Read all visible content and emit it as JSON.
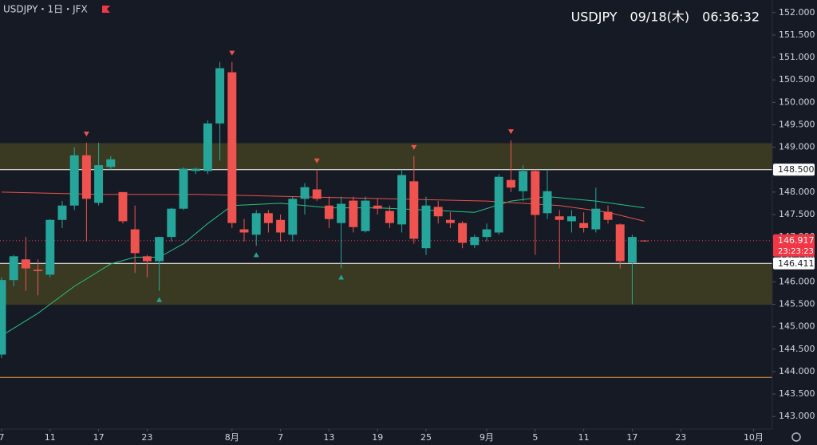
{
  "chart_data": {
    "type": "candlestick",
    "title": "USDJPY・1日・JFX",
    "subtitle": "USDJPY　09/18(木)　06:36:32",
    "x": [
      0,
      1,
      2,
      3,
      4,
      5,
      6,
      7,
      8,
      9,
      10,
      11,
      12,
      13,
      14,
      15,
      16,
      17,
      18,
      19,
      20,
      21,
      22,
      23,
      24,
      25,
      26,
      27,
      28,
      29,
      30,
      31,
      32,
      33,
      34,
      35,
      36,
      37,
      38,
      39,
      40,
      41,
      42,
      43,
      44,
      45,
      46,
      47,
      48,
      49,
      50,
      51,
      52,
      53
    ],
    "open": [
      144.38,
      146.04,
      146.5,
      146.27,
      146.16,
      147.38,
      147.7,
      148.82,
      147.76,
      148.56,
      148.0,
      147.17,
      146.57,
      146.46,
      147.0,
      147.63,
      148.47,
      148.47,
      149.53,
      150.67,
      147.17,
      147.05,
      147.53,
      147.38,
      147.05,
      147.85,
      148.06,
      147.7,
      147.31,
      147.81,
      147.13,
      147.7,
      147.58,
      147.28,
      148.24,
      146.75,
      147.67,
      147.38,
      147.31,
      146.82,
      147.0,
      147.1,
      148.27,
      148.02,
      148.47,
      147.53,
      147.46,
      147.35,
      147.31,
      147.17,
      147.56,
      147.28,
      146.43,
      146.92
    ],
    "high": [
      146.1,
      146.6,
      147.0,
      146.5,
      147.4,
      147.8,
      149.0,
      149.1,
      149.1,
      148.8,
      148.0,
      147.7,
      146.6,
      147.0,
      147.65,
      148.55,
      148.55,
      149.6,
      150.9,
      150.9,
      147.4,
      147.6,
      147.6,
      147.5,
      147.9,
      148.2,
      148.5,
      147.9,
      147.9,
      147.9,
      147.9,
      147.85,
      147.7,
      148.5,
      148.8,
      147.9,
      147.8,
      147.55,
      147.35,
      147.05,
      147.3,
      148.4,
      149.15,
      148.6,
      148.5,
      148.5,
      147.6,
      147.6,
      147.55,
      148.1,
      147.7,
      147.3,
      147.05,
      146.93
    ],
    "low": [
      144.3,
      145.9,
      145.8,
      145.7,
      146.1,
      147.2,
      147.6,
      146.9,
      147.7,
      148.5,
      147.3,
      146.2,
      146.1,
      145.8,
      146.9,
      147.6,
      148.4,
      148.4,
      148.7,
      147.2,
      146.9,
      146.8,
      147.1,
      146.9,
      146.9,
      147.5,
      147.8,
      147.2,
      146.3,
      147.1,
      147.1,
      147.5,
      147.2,
      147.1,
      146.85,
      146.6,
      147.3,
      147.2,
      146.75,
      146.75,
      146.9,
      147.05,
      148.0,
      147.8,
      146.6,
      147.4,
      146.3,
      147.1,
      147.1,
      147.1,
      147.3,
      146.3,
      145.5,
      146.9
    ],
    "close": [
      146.04,
      146.57,
      146.3,
      146.24,
      147.38,
      147.7,
      148.82,
      147.85,
      148.6,
      148.73,
      147.35,
      146.64,
      146.46,
      147.0,
      147.63,
      148.52,
      148.52,
      149.53,
      150.76,
      147.31,
      147.1,
      147.53,
      147.31,
      147.1,
      147.85,
      148.11,
      147.85,
      147.4,
      147.74,
      147.22,
      147.81,
      147.63,
      147.31,
      148.38,
      146.96,
      147.7,
      147.46,
      147.31,
      146.87,
      147.0,
      147.17,
      148.34,
      148.1,
      148.47,
      147.49,
      148.02,
      147.38,
      147.46,
      147.2,
      147.63,
      147.38,
      146.46,
      147.0,
      146.917
    ],
    "up_color": "#26a69a",
    "down_color": "#ef5350",
    "ma": [
      {
        "color": "#26c281",
        "x": [
          0,
          3,
          6,
          9,
          11,
          13,
          15,
          17,
          19,
          23,
          27,
          31,
          35,
          39,
          42,
          45,
          49,
          53
        ],
        "values": [
          144.8,
          145.3,
          145.9,
          146.4,
          146.55,
          146.55,
          146.85,
          147.3,
          147.7,
          147.75,
          147.65,
          147.65,
          147.6,
          147.55,
          147.8,
          147.9,
          147.8,
          147.65
        ]
      },
      {
        "color": "#e5534b",
        "x": [
          0,
          8,
          16,
          24,
          32,
          40,
          46,
          50,
          53
        ],
        "values": [
          148.0,
          147.95,
          147.95,
          147.9,
          147.85,
          147.8,
          147.7,
          147.55,
          147.35
        ]
      }
    ],
    "zones": [
      {
        "from": 148.5,
        "to": 149.09,
        "color": "#3a3a22"
      },
      {
        "from": 145.49,
        "to": 146.411,
        "color": "#3a3a22"
      }
    ],
    "lines": [
      {
        "value": 148.5,
        "label": "148.500",
        "color": "#ffffff"
      },
      {
        "value": 146.411,
        "label": "146.411",
        "color": "#ffffff"
      },
      {
        "value": 143.87,
        "color": "#e8a33d"
      }
    ],
    "last": {
      "value": 146.917,
      "label": "146.917",
      "countdown": "23:23:23",
      "color": "#f23645"
    },
    "markers_down": [
      7,
      19,
      26,
      34,
      42
    ],
    "markers_up": [
      13,
      21,
      28
    ],
    "ylim": [
      142.72,
      152.28
    ],
    "yticks": [
      {
        "value": 143,
        "label": "143.000"
      },
      {
        "value": 143.5,
        "label": "143.500"
      },
      {
        "value": 144,
        "label": "144.000"
      },
      {
        "value": 144.5,
        "label": "144.500"
      },
      {
        "value": 145,
        "label": "145.000"
      },
      {
        "value": 145.5,
        "label": "145.500"
      },
      {
        "value": 146,
        "label": "146.000"
      },
      {
        "value": 146.5,
        "label": "146.500"
      },
      {
        "value": 147,
        "label": "147.000"
      },
      {
        "value": 147.5,
        "label": "147.500"
      },
      {
        "value": 148,
        "label": "148.000"
      },
      {
        "value": 148.5,
        "label": "148.500"
      },
      {
        "value": 149,
        "label": "149.000"
      },
      {
        "value": 149.5,
        "label": "149.500"
      },
      {
        "value": 150,
        "label": "150.000"
      },
      {
        "value": 150.5,
        "label": "150.500"
      },
      {
        "value": 151,
        "label": "151.000"
      },
      {
        "value": 151.5,
        "label": "151.500"
      },
      {
        "value": 152,
        "label": "152.000"
      }
    ],
    "xlim": [
      -0.13,
      63.55
    ],
    "xticks": [
      {
        "value": 0,
        "label": "7"
      },
      {
        "value": 4,
        "label": "11"
      },
      {
        "value": 8,
        "label": "17"
      },
      {
        "value": 12,
        "label": "23"
      },
      {
        "value": 19,
        "label": "8月"
      },
      {
        "value": 23,
        "label": "7"
      },
      {
        "value": 27,
        "label": "13"
      },
      {
        "value": 31,
        "label": "19"
      },
      {
        "value": 35,
        "label": "25"
      },
      {
        "value": 40,
        "label": "9月"
      },
      {
        "value": 44,
        "label": "5"
      },
      {
        "value": 48,
        "label": "11"
      },
      {
        "value": 52,
        "label": "17"
      },
      {
        "value": 56,
        "label": "23"
      },
      {
        "value": 62,
        "label": "10月"
      }
    ]
  }
}
